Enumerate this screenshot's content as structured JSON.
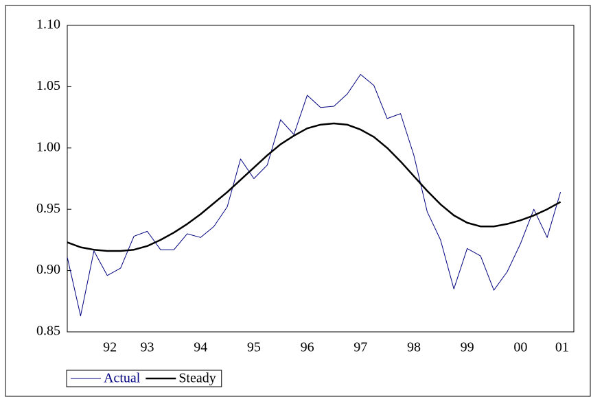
{
  "chart_data": {
    "type": "line",
    "x": [
      1992,
      1992.25,
      1992.5,
      1992.75,
      1993,
      1993.25,
      1993.5,
      1993.75,
      1994,
      1994.25,
      1994.5,
      1994.75,
      1995,
      1995.25,
      1995.5,
      1995.75,
      1996,
      1996.25,
      1996.5,
      1996.75,
      1997,
      1997.25,
      1997.5,
      1997.75,
      1998,
      1998.25,
      1998.5,
      1998.75,
      1999,
      1999.25,
      1999.5,
      1999.75,
      2000,
      2000.25,
      2000.5,
      2000.75,
      2001,
      2001.25
    ],
    "series": [
      {
        "name": "Actual",
        "color": "#000080",
        "width": 1,
        "values": [
          0.911,
          0.863,
          0.916,
          0.896,
          0.902,
          0.928,
          0.932,
          0.917,
          0.917,
          0.93,
          0.927,
          0.936,
          0.952,
          0.991,
          0.975,
          0.986,
          1.023,
          1.011,
          1.043,
          1.033,
          1.034,
          1.044,
          1.06,
          1.051,
          1.024,
          1.028,
          0.994,
          0.948,
          0.925,
          0.885,
          0.918,
          0.912,
          0.884,
          0.899,
          0.922,
          0.95,
          0.927,
          0.964
        ]
      },
      {
        "name": "Steady",
        "color": "#000000",
        "width": 2.5,
        "values": [
          0.923,
          0.919,
          0.917,
          0.916,
          0.916,
          0.917,
          0.92,
          0.925,
          0.931,
          0.938,
          0.946,
          0.955,
          0.964,
          0.974,
          0.984,
          0.994,
          1.003,
          1.01,
          1.016,
          1.019,
          1.02,
          1.019,
          1.015,
          1.009,
          1.0,
          0.989,
          0.977,
          0.965,
          0.954,
          0.945,
          0.939,
          0.936,
          0.936,
          0.938,
          0.941,
          0.945,
          0.95,
          0.956
        ]
      }
    ],
    "xlim": [
      1992,
      2001.5
    ],
    "xticks": [
      {
        "value": 1992.8,
        "label": "92"
      },
      {
        "value": 1993.5,
        "label": "93"
      },
      {
        "value": 1994.5,
        "label": "94"
      },
      {
        "value": 1995.5,
        "label": "95"
      },
      {
        "value": 1996.5,
        "label": "96"
      },
      {
        "value": 1997.5,
        "label": "97"
      },
      {
        "value": 1998.5,
        "label": "98"
      },
      {
        "value": 1999.5,
        "label": "99"
      },
      {
        "value": 2000.5,
        "label": "00"
      },
      {
        "value": 2001.28,
        "label": "01"
      }
    ],
    "ylim": [
      0.85,
      1.1
    ],
    "yticks": [
      {
        "value": 0.85,
        "label": "0.85"
      },
      {
        "value": 0.9,
        "label": "0.90"
      },
      {
        "value": 0.95,
        "label": "0.95"
      },
      {
        "value": 1.0,
        "label": "1.00"
      },
      {
        "value": 1.05,
        "label": "1.05"
      },
      {
        "value": 1.1,
        "label": "1.10"
      }
    ],
    "legend": "bottom-left"
  }
}
